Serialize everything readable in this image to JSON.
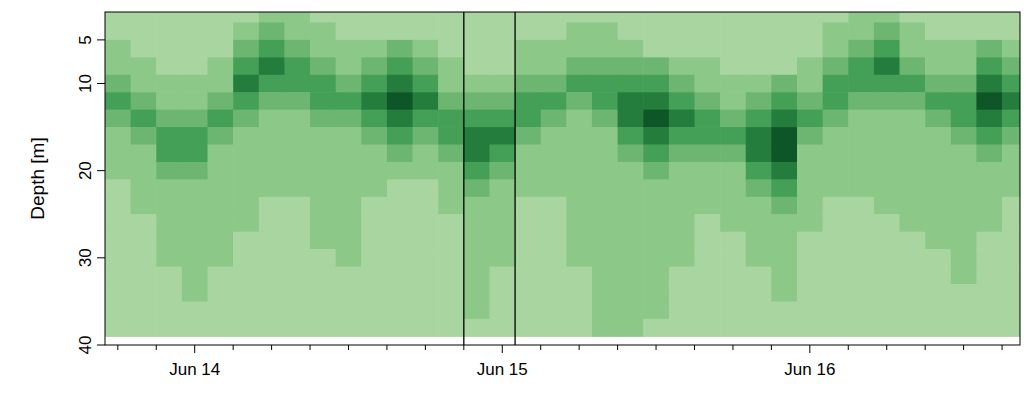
{
  "chart_data": {
    "type": "heatmap",
    "y_label": "Depth [m]",
    "x": [
      -6,
      -4,
      -2,
      0,
      2,
      4,
      6,
      8,
      10,
      12,
      14,
      16,
      18,
      20,
      22,
      24,
      26,
      28,
      30,
      32,
      34,
      36,
      38,
      40,
      42,
      44,
      46,
      48,
      50,
      52,
      54,
      56,
      58,
      60,
      62,
      64
    ],
    "depths": [
      2,
      4,
      6,
      8,
      10,
      12,
      14,
      16,
      18,
      20,
      22,
      24,
      26,
      28,
      30,
      32,
      34,
      36,
      38,
      40
    ],
    "values": [
      [
        1,
        1,
        2,
        2,
        3,
        4,
        3,
        2,
        2,
        2,
        1,
        1,
        1,
        1,
        1,
        1,
        1,
        1,
        1,
        null
      ],
      [
        1,
        1,
        1,
        2,
        2,
        3,
        4,
        3,
        2,
        2,
        2,
        2,
        1,
        1,
        1,
        1,
        1,
        1,
        1,
        null
      ],
      [
        1,
        1,
        1,
        1,
        2,
        2,
        3,
        4,
        4,
        3,
        2,
        2,
        2,
        2,
        2,
        1,
        1,
        1,
        1,
        null
      ],
      [
        1,
        1,
        1,
        1,
        2,
        2,
        3,
        4,
        4,
        3,
        2,
        2,
        2,
        2,
        2,
        2,
        2,
        1,
        1,
        null
      ],
      [
        1,
        1,
        1,
        2,
        2,
        3,
        4,
        3,
        2,
        2,
        2,
        2,
        2,
        2,
        2,
        1,
        1,
        1,
        1,
        null
      ],
      [
        1,
        2,
        3,
        4,
        5,
        4,
        3,
        2,
        2,
        2,
        2,
        2,
        2,
        1,
        1,
        1,
        1,
        1,
        1,
        null
      ],
      [
        2,
        3,
        4,
        5,
        4,
        3,
        2,
        2,
        2,
        2,
        2,
        1,
        1,
        1,
        1,
        1,
        1,
        1,
        1,
        null
      ],
      [
        2,
        2,
        3,
        4,
        4,
        3,
        2,
        2,
        2,
        2,
        2,
        1,
        1,
        1,
        1,
        1,
        1,
        1,
        1,
        null
      ],
      [
        1,
        2,
        2,
        3,
        4,
        4,
        3,
        2,
        2,
        2,
        2,
        2,
        2,
        2,
        1,
        1,
        1,
        1,
        1,
        null
      ],
      [
        1,
        1,
        2,
        2,
        3,
        4,
        3,
        2,
        2,
        2,
        2,
        2,
        2,
        2,
        2,
        1,
        1,
        1,
        1,
        null
      ],
      [
        1,
        1,
        2,
        3,
        4,
        5,
        4,
        3,
        2,
        2,
        2,
        1,
        1,
        1,
        1,
        1,
        1,
        1,
        1,
        null
      ],
      [
        1,
        1,
        3,
        4,
        5,
        6,
        5,
        4,
        3,
        2,
        1,
        1,
        1,
        1,
        1,
        1,
        1,
        1,
        1,
        null
      ],
      [
        1,
        1,
        2,
        3,
        4,
        5,
        4,
        3,
        2,
        2,
        1,
        1,
        1,
        1,
        1,
        1,
        1,
        1,
        1,
        null
      ],
      [
        1,
        1,
        1,
        2,
        2,
        3,
        4,
        4,
        3,
        2,
        2,
        2,
        1,
        1,
        1,
        1,
        1,
        1,
        1,
        null
      ],
      [
        1,
        1,
        1,
        1,
        2,
        3,
        4,
        5,
        5,
        4,
        3,
        2,
        2,
        2,
        2,
        2,
        2,
        2,
        1,
        null
      ],
      [
        1,
        1,
        1,
        1,
        2,
        3,
        4,
        5,
        4,
        3,
        2,
        2,
        2,
        2,
        2,
        1,
        1,
        1,
        1,
        null
      ],
      [
        1,
        1,
        2,
        2,
        3,
        4,
        4,
        3,
        2,
        2,
        2,
        1,
        1,
        1,
        1,
        1,
        1,
        1,
        1,
        null
      ],
      [
        1,
        1,
        2,
        2,
        3,
        4,
        3,
        2,
        2,
        2,
        2,
        1,
        1,
        1,
        1,
        1,
        1,
        1,
        1,
        null
      ],
      [
        1,
        2,
        2,
        3,
        4,
        3,
        2,
        2,
        2,
        2,
        2,
        2,
        2,
        2,
        2,
        1,
        1,
        1,
        1,
        null
      ],
      [
        1,
        2,
        2,
        3,
        4,
        4,
        3,
        2,
        2,
        2,
        2,
        2,
        2,
        2,
        2,
        2,
        2,
        2,
        2,
        null
      ],
      [
        1,
        1,
        2,
        3,
        4,
        5,
        5,
        4,
        3,
        2,
        2,
        2,
        2,
        2,
        2,
        2,
        2,
        2,
        2,
        null
      ],
      [
        1,
        1,
        1,
        3,
        4,
        5,
        6,
        5,
        4,
        3,
        2,
        2,
        2,
        2,
        2,
        2,
        2,
        2,
        1,
        null
      ],
      [
        1,
        1,
        1,
        2,
        3,
        4,
        5,
        4,
        3,
        2,
        2,
        2,
        2,
        2,
        2,
        1,
        1,
        1,
        1,
        null
      ],
      [
        1,
        1,
        1,
        2,
        2,
        3,
        4,
        4,
        3,
        2,
        2,
        2,
        1,
        1,
        1,
        1,
        1,
        1,
        1,
        null
      ],
      [
        1,
        1,
        1,
        1,
        2,
        2,
        3,
        4,
        3,
        2,
        2,
        2,
        2,
        1,
        1,
        1,
        1,
        1,
        1,
        null
      ],
      [
        1,
        1,
        1,
        1,
        2,
        3,
        4,
        5,
        5,
        4,
        3,
        2,
        2,
        2,
        2,
        1,
        1,
        1,
        1,
        null
      ],
      [
        1,
        1,
        1,
        1,
        3,
        4,
        5,
        6,
        6,
        5,
        4,
        3,
        2,
        2,
        2,
        2,
        2,
        1,
        1,
        null
      ],
      [
        1,
        1,
        1,
        2,
        2,
        3,
        4,
        3,
        2,
        2,
        2,
        2,
        2,
        1,
        1,
        1,
        1,
        1,
        1,
        null
      ],
      [
        1,
        2,
        2,
        3,
        4,
        4,
        3,
        2,
        2,
        2,
        2,
        1,
        1,
        1,
        1,
        1,
        1,
        1,
        1,
        null
      ],
      [
        2,
        2,
        3,
        4,
        4,
        3,
        2,
        2,
        2,
        2,
        2,
        1,
        1,
        1,
        1,
        1,
        1,
        1,
        1,
        null
      ],
      [
        2,
        3,
        4,
        5,
        4,
        3,
        2,
        2,
        2,
        2,
        2,
        2,
        1,
        1,
        1,
        1,
        1,
        1,
        1,
        null
      ],
      [
        1,
        2,
        2,
        3,
        4,
        3,
        2,
        2,
        2,
        2,
        2,
        2,
        2,
        1,
        1,
        1,
        1,
        1,
        1,
        null
      ],
      [
        1,
        1,
        2,
        2,
        3,
        4,
        3,
        2,
        2,
        2,
        2,
        2,
        2,
        2,
        1,
        1,
        1,
        1,
        1,
        null
      ],
      [
        1,
        1,
        2,
        2,
        3,
        4,
        4,
        3,
        2,
        2,
        2,
        2,
        2,
        2,
        2,
        2,
        1,
        1,
        1,
        null
      ],
      [
        1,
        1,
        3,
        4,
        5,
        6,
        5,
        4,
        3,
        2,
        2,
        2,
        2,
        1,
        1,
        1,
        1,
        1,
        1,
        null
      ],
      [
        1,
        1,
        2,
        3,
        4,
        5,
        4,
        3,
        2,
        2,
        2,
        1,
        1,
        1,
        1,
        1,
        1,
        1,
        1,
        null
      ]
    ],
    "levels": [
      1,
      2,
      3,
      4,
      5,
      6
    ],
    "colors": [
      "#a9d5a0",
      "#8cc887",
      "#6db671",
      "#449f57",
      "#247d3d",
      "#0e5628"
    ],
    "xlim": [
      -7,
      64.4
    ],
    "ylim": [
      40,
      1.8
    ],
    "xticks": [
      {
        "value": 0,
        "label": "Jun 14"
      },
      {
        "value": 24,
        "label": "Jun 15"
      },
      {
        "value": 48,
        "label": "Jun 16"
      }
    ],
    "minor_xticks": [
      -6,
      -3,
      3,
      6,
      9,
      12,
      15,
      18,
      21,
      27,
      30,
      33,
      36,
      39,
      42,
      45,
      51,
      54,
      57,
      60,
      63
    ],
    "yticks": [
      5,
      10,
      20,
      30,
      40
    ],
    "vlines": [
      21,
      25
    ]
  }
}
